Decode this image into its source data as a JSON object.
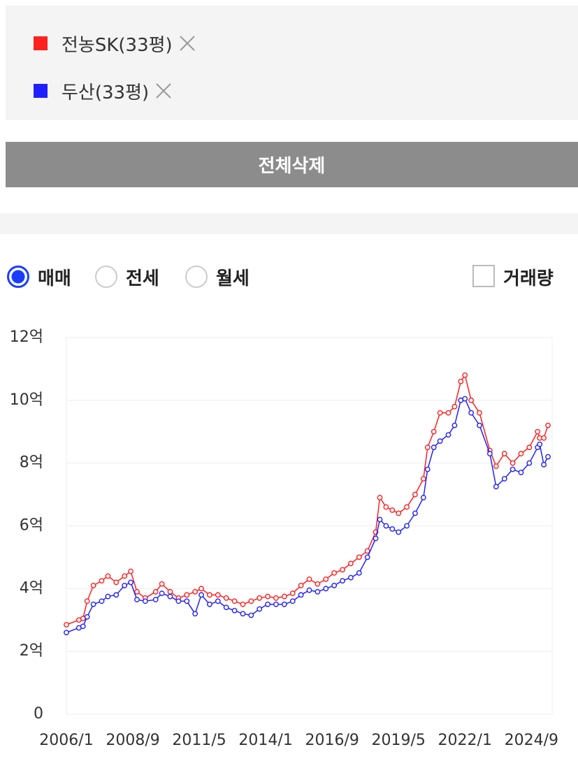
{
  "delete_all": "전체삭제",
  "tabs": {
    "items": [
      "매매",
      "전세",
      "월세"
    ],
    "selected": 0
  },
  "volume_checkbox": "거래량",
  "chart_data": {
    "type": "line",
    "x": [
      "2006/1",
      "2006/7",
      "2006/9",
      "2006/11",
      "2007/2",
      "2007/6",
      "2007/9",
      "2008/1",
      "2008/5",
      "2008/8",
      "2008/11",
      "2009/3",
      "2009/8",
      "2009/11",
      "2010/3",
      "2010/7",
      "2010/11",
      "2011/3",
      "2011/6",
      "2011/10",
      "2012/2",
      "2012/6",
      "2012/10",
      "2013/2",
      "2013/6",
      "2013/10",
      "2014/2",
      "2014/6",
      "2014/10",
      "2015/2",
      "2015/6",
      "2015/10",
      "2016/2",
      "2016/6",
      "2016/10",
      "2017/2",
      "2017/6",
      "2017/10",
      "2018/2",
      "2018/6",
      "2018/8",
      "2018/11",
      "2019/2",
      "2019/5",
      "2019/9",
      "2020/1",
      "2020/5",
      "2020/7",
      "2020/10",
      "2021/1",
      "2021/5",
      "2021/8",
      "2021/11",
      "2022/1",
      "2022/4",
      "2022/8",
      "2023/1",
      "2023/4",
      "2023/8",
      "2023/12",
      "2024/4",
      "2024/8",
      "2024/12",
      "2025/1",
      "2025/3",
      "2025/5"
    ],
    "series": [
      {
        "name": "전농SK(33평)",
        "color": "#ff2020",
        "values": [
          2.85,
          3.0,
          3.05,
          3.6,
          4.1,
          4.25,
          4.4,
          4.2,
          4.4,
          4.55,
          3.9,
          3.7,
          3.9,
          4.15,
          3.9,
          3.7,
          3.8,
          3.9,
          4.0,
          3.8,
          3.8,
          3.7,
          3.6,
          3.5,
          3.6,
          3.7,
          3.75,
          3.7,
          3.75,
          3.85,
          4.1,
          4.3,
          4.15,
          4.3,
          4.5,
          4.6,
          4.8,
          5.0,
          5.2,
          5.8,
          6.9,
          6.6,
          6.5,
          6.4,
          6.6,
          7.0,
          7.5,
          8.5,
          9.0,
          9.6,
          9.6,
          9.8,
          10.6,
          10.8,
          10.0,
          9.6,
          8.4,
          7.9,
          8.3,
          8.0,
          8.3,
          8.5,
          9.0,
          8.8,
          8.8,
          9.2
        ]
      },
      {
        "name": "두산(33평)",
        "color": "#2020ff",
        "values": [
          2.6,
          2.75,
          2.8,
          3.1,
          3.5,
          3.6,
          3.75,
          3.8,
          4.1,
          4.2,
          3.65,
          3.6,
          3.65,
          3.85,
          3.75,
          3.6,
          3.6,
          3.2,
          3.8,
          3.5,
          3.6,
          3.4,
          3.3,
          3.2,
          3.15,
          3.35,
          3.5,
          3.5,
          3.5,
          3.6,
          3.8,
          3.95,
          3.9,
          4.0,
          4.1,
          4.25,
          4.35,
          4.5,
          5.0,
          5.6,
          6.2,
          6.0,
          5.9,
          5.8,
          6.0,
          6.4,
          6.9,
          7.8,
          8.5,
          8.7,
          8.9,
          9.2,
          10.0,
          10.05,
          9.6,
          9.2,
          8.3,
          7.25,
          7.5,
          7.8,
          7.7,
          8.0,
          8.5,
          8.6,
          7.95,
          8.2
        ]
      }
    ],
    "xlim": [
      "2006/1",
      "2025/7"
    ],
    "xticks": [
      "2006/1",
      "2008/9",
      "2011/5",
      "2014/1",
      "2016/9",
      "2019/5",
      "2022/1",
      "2024/9"
    ],
    "ylim": [
      0,
      12
    ],
    "yticks": [
      0,
      {
        "value": 2,
        "label": "2억"
      },
      {
        "value": 4,
        "label": "4억"
      },
      {
        "value": 6,
        "label": "6억"
      },
      {
        "value": 8,
        "label": "8억"
      },
      {
        "value": 10,
        "label": "10억"
      },
      {
        "value": 12,
        "label": "12억"
      }
    ],
    "grid": true
  }
}
